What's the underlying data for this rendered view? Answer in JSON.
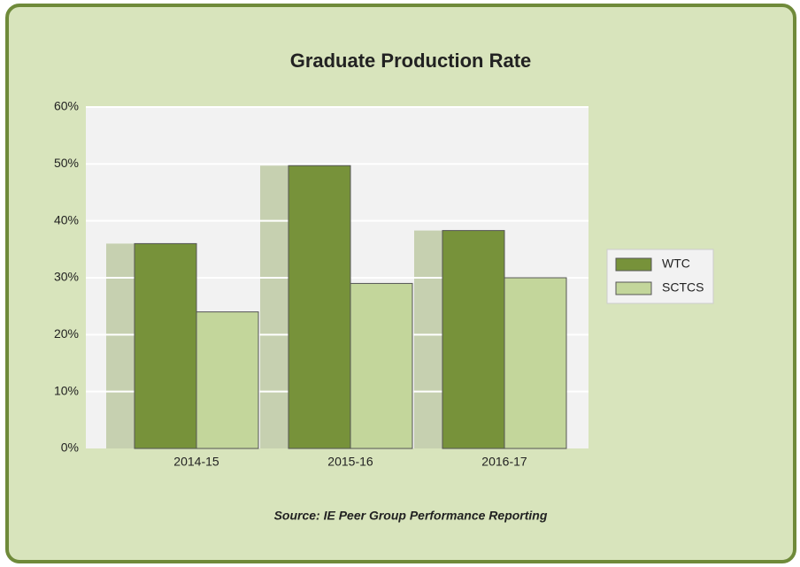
{
  "chart_data": {
    "type": "bar",
    "title": "Graduate Production Rate",
    "categories": [
      "2014-15",
      "2015-16",
      "2016-17"
    ],
    "series": [
      {
        "name": "WTC",
        "color": "#77923a",
        "values": [
          36,
          49.7,
          38.3
        ]
      },
      {
        "name": "SCTCS",
        "color": "#c3d69b",
        "values": [
          24,
          29,
          30
        ]
      }
    ],
    "ylim": [
      0,
      60
    ],
    "yticks": [
      {
        "value": 0,
        "label": "0%"
      },
      {
        "value": 10,
        "label": "10%"
      },
      {
        "value": 20,
        "label": "20%"
      },
      {
        "value": 30,
        "label": "30%"
      },
      {
        "value": 40,
        "label": "40%"
      },
      {
        "value": 50,
        "label": "50%"
      },
      {
        "value": 60,
        "label": "60%"
      }
    ],
    "grid": true,
    "legend": "right",
    "annotation": "Source: IE Peer Group Performance Reporting"
  }
}
